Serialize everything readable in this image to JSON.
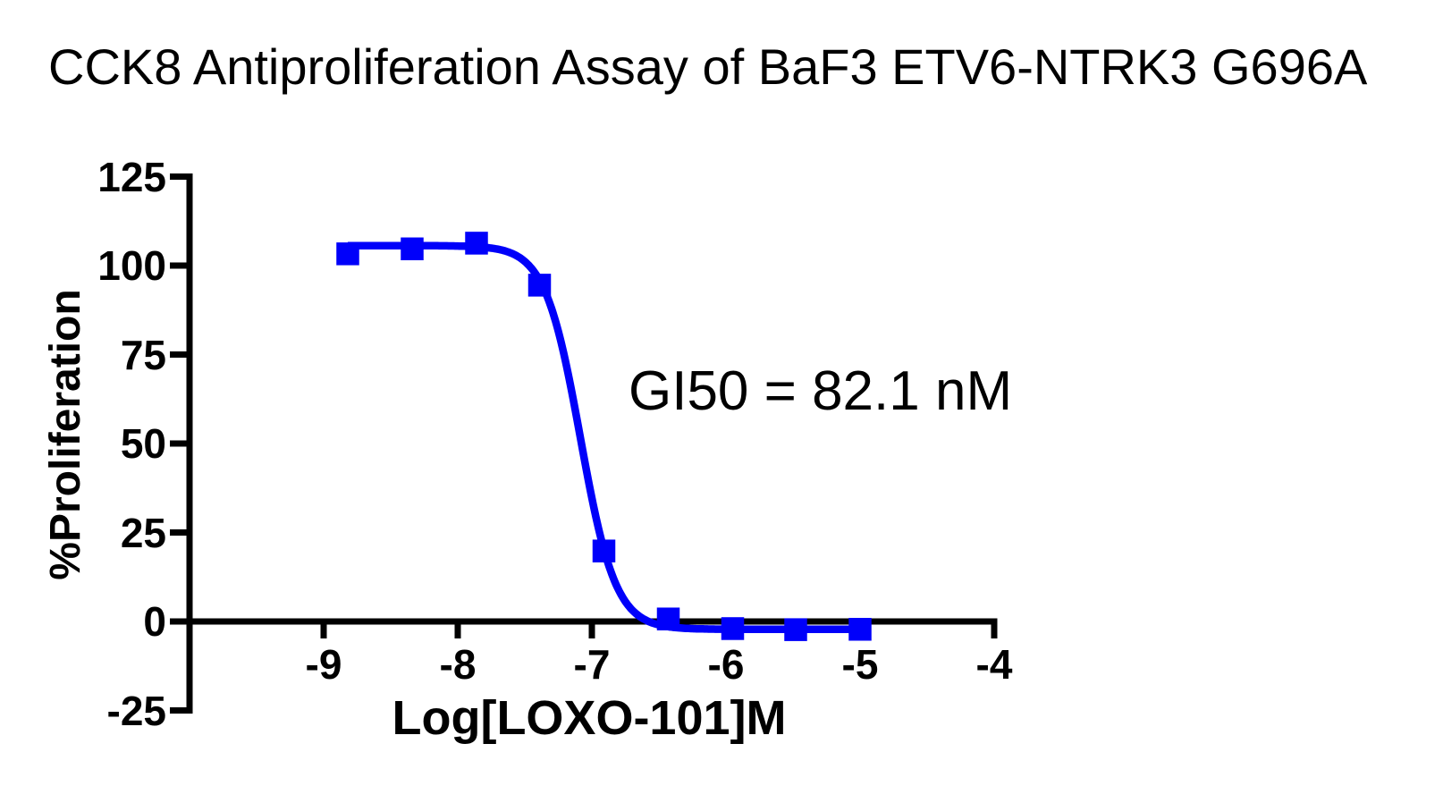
{
  "title": "CCK8 Antiproliferation Assay of BaF3 ETV6-NTRK3 G696A",
  "styles": {
    "series_blue": "#0000fa",
    "axis_color": "#000000",
    "background": "#ffffff"
  },
  "chart_data": {
    "type": "scatter",
    "title": "CCK8 Antiproliferation Assay of BaF3 ETV6-NTRK3 G696A",
    "xlabel": "Log[LOXO-101]M",
    "ylabel": "%Proliferation",
    "annotation": "GI50 = 82.1 nM",
    "gi50_nM": 82.1,
    "xlim": [
      -10,
      -4
    ],
    "ylim": [
      -25,
      125
    ],
    "x_ticks": [
      -9,
      -8,
      -7,
      -6,
      -5,
      -4
    ],
    "y_ticks": [
      125,
      100,
      75,
      50,
      25,
      0,
      -25
    ],
    "grid": false,
    "legend": false,
    "series": [
      {
        "name": "LOXO-101",
        "marker": "square",
        "color": "#0000fa",
        "x": [
          -8.82,
          -8.34,
          -7.86,
          -7.39,
          -6.91,
          -6.43,
          -5.95,
          -5.48,
          -5.0
        ],
        "y": [
          103.3,
          104.7,
          106.3,
          94.5,
          19.8,
          0.7,
          -2.0,
          -2.3,
          -2.2
        ]
      }
    ],
    "fit_curve": {
      "model": "4PL",
      "top": 105.6,
      "bottom": -2.2,
      "log_gi50": -7.086,
      "hill_slope": 3.3,
      "x_range": [
        -8.82,
        -5.0
      ]
    }
  }
}
